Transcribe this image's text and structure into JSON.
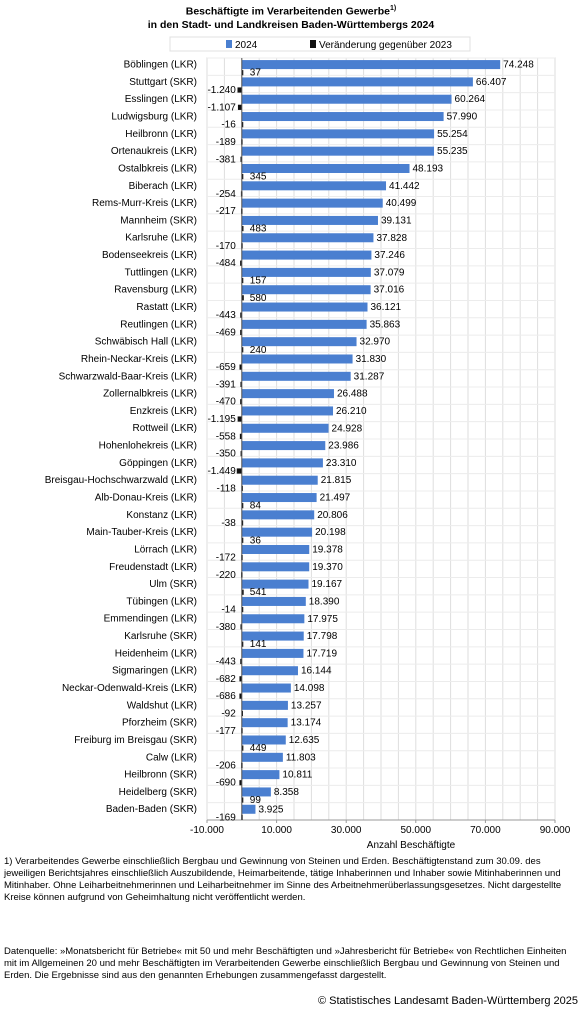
{
  "title": {
    "line1": "Beschäftigte im Verarbeitenden Gewerbe",
    "sup": "1)",
    "line2": "in den Stadt- und Landkreisen Baden-Württembergs 2024"
  },
  "footnote": "1) Verarbeitendes Gewerbe einschließlich Bergbau und Gewinnung von Steinen und Erden. Beschäftigtenstand zum 30.09. des jeweiligen Berichtsjahres einschließlich Auszubildende, Heimarbeitende, tätige Inhaberinnen und Inhaber sowie Mitinhaberinnen und Mitinhaber. Ohne Leiharbeitnehmerinnen und Leiharbeitnehmer im Sinne des Arbeitnehmerüberlassungsgesetzes. Nicht dargestellte Kreise können aufgrund von Geheimhaltung nicht veröffentlicht werden.",
  "source": "Datenquelle: »Monatsbericht für Betriebe« mit 50 und mehr Beschäftigten und »Jahresbericht für Betriebe« von Rechtlichen Einheiten mit im Allgemeinen 20 und mehr Beschäftigten im Verarbeitenden Gewerbe einschließlich Bergbau und Gewinnung von Steinen und Erden. Die Ergebnisse sind aus den genannten Erhebungen zusammengefasst dargestellt.",
  "copyright": "© Statistisches Landesamt Baden-Württemberg 2025",
  "chart_data": {
    "type": "bar",
    "orientation": "horizontal",
    "xlabel": "Anzahl Beschäftigte",
    "xlim": [
      -10000,
      90000
    ],
    "xticks": [
      -10000,
      10000,
      30000,
      50000,
      70000,
      90000
    ],
    "xtick_labels": [
      "-10.000",
      "10.000",
      "30.000",
      "50.000",
      "70.000",
      "90.000"
    ],
    "grid": true,
    "legend_position": "top",
    "categories": [
      "Böblingen (LKR)",
      "Stuttgart (SKR)",
      "Esslingen (LKR)",
      "Ludwigsburg (LKR)",
      "Heilbronn (LKR)",
      "Ortenaukreis (LKR)",
      "Ostalbkreis (LKR)",
      "Biberach (LKR)",
      "Rems-Murr-Kreis (LKR)",
      "Mannheim (SKR)",
      "Karlsruhe (LKR)",
      "Bodenseekreis (LKR)",
      "Tuttlingen (LKR)",
      "Ravensburg (LKR)",
      "Rastatt (LKR)",
      "Reutlingen (LKR)",
      "Schwäbisch Hall (LKR)",
      "Rhein-Neckar-Kreis (LKR)",
      "Schwarzwald-Baar-Kreis (LKR)",
      "Zollernalbkreis (LKR)",
      "Enzkreis (LKR)",
      "Rottweil (LKR)",
      "Hohenlohekreis (LKR)",
      "Göppingen (LKR)",
      "Breisgau-Hochschwarzwald (LKR)",
      "Alb-Donau-Kreis (LKR)",
      "Konstanz (LKR)",
      "Main-Tauber-Kreis (LKR)",
      "Lörrach (LKR)",
      "Freudenstadt (LKR)",
      "Ulm (SKR)",
      "Tübingen (LKR)",
      "Emmendingen (LKR)",
      "Karlsruhe (SKR)",
      "Heidenheim (LKR)",
      "Sigmaringen (LKR)",
      "Neckar-Odenwald-Kreis (LKR)",
      "Waldshut (LKR)",
      "Pforzheim (SKR)",
      "Freiburg im Breisgau (SKR)",
      "Calw (LKR)",
      "Heilbronn (SKR)",
      "Heidelberg (SKR)",
      "Baden-Baden (SKR)"
    ],
    "series": [
      {
        "name": "2024",
        "color": "#4a7fd0",
        "values": [
          74248,
          66407,
          60264,
          57990,
          55254,
          55235,
          48193,
          41442,
          40499,
          39131,
          37828,
          37246,
          37079,
          37016,
          36121,
          35863,
          32970,
          31830,
          31287,
          26488,
          26210,
          24928,
          23986,
          23310,
          21815,
          21497,
          20806,
          20198,
          19378,
          19370,
          19167,
          18390,
          17975,
          17798,
          17719,
          16144,
          14098,
          13257,
          13174,
          12635,
          11803,
          10811,
          8358,
          3925
        ],
        "labels": [
          "74.248",
          "66.407",
          "60.264",
          "57.990",
          "55.254",
          "55.235",
          "48.193",
          "41.442",
          "40.499",
          "39.131",
          "37.828",
          "37.246",
          "37.079",
          "37.016",
          "36.121",
          "35.863",
          "32.970",
          "31.830",
          "31.287",
          "26.488",
          "26.210",
          "24.928",
          "23.986",
          "23.310",
          "21.815",
          "21.497",
          "20.806",
          "20.198",
          "19.378",
          "19.370",
          "19.167",
          "18.390",
          "17.975",
          "17.798",
          "17.719",
          "16.144",
          "14.098",
          "13.257",
          "13.174",
          "12.635",
          "11.803",
          "10.811",
          "8.358",
          "3.925"
        ]
      },
      {
        "name": "Veränderung gegenüber 2023",
        "color": "#111111",
        "values": [
          37,
          -1240,
          -1107,
          -16,
          -189,
          -381,
          345,
          -254,
          -217,
          483,
          -170,
          -484,
          157,
          580,
          -443,
          -469,
          240,
          -659,
          -391,
          -470,
          -1195,
          -558,
          -350,
          -1449,
          -118,
          84,
          -38,
          36,
          -172,
          -220,
          541,
          -14,
          -380,
          141,
          -443,
          -682,
          -686,
          -92,
          -177,
          449,
          -206,
          -690,
          99,
          -169
        ],
        "labels": [
          "37",
          "-1.240",
          "-1.107",
          "-16",
          "-189",
          "-381",
          "345",
          "-254",
          "-217",
          "483",
          "-170",
          "-484",
          "157",
          "580",
          "-443",
          "-469",
          "240",
          "-659",
          "-391",
          "-470",
          "-1.195",
          "-558",
          "-350",
          "-1.449",
          "-118",
          "84",
          "-38",
          "36",
          "-172",
          "-220",
          "541",
          "-14",
          "-380",
          "141",
          "-443",
          "-682",
          "-686",
          "-92",
          "-177",
          "449",
          "-206",
          "-690",
          "99",
          "-169"
        ]
      }
    ]
  }
}
